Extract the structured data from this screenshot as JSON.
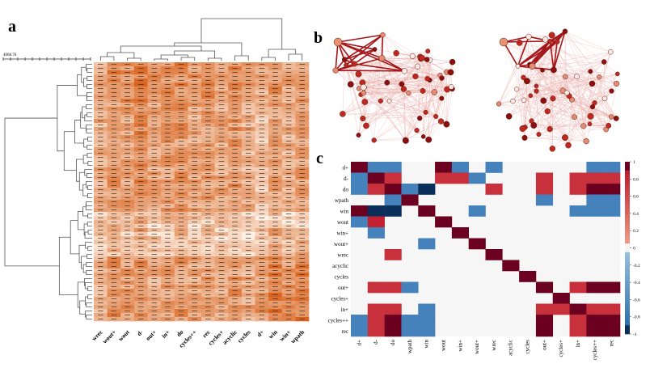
{
  "panels": {
    "a": "a",
    "b": "b",
    "c": "c"
  },
  "panel_a": {
    "scale_label": "4068.76",
    "column_labels": [
      "wrec",
      "wout+",
      "wout",
      "d-",
      "out+",
      "in+",
      "do",
      "cycles++",
      "rec",
      "cycles+",
      "acyclic",
      "cycles",
      "d+",
      "win",
      "win+",
      "wpath"
    ]
  },
  "panel_c": {
    "row_labels": [
      "d+",
      "d-",
      "do",
      "wpath",
      "win",
      "wout",
      "win+",
      "wout+",
      "wrec",
      "acyclic",
      "cycles",
      "out+",
      "cycles+",
      "in+",
      "cycles++",
      "rec"
    ],
    "col_labels": [
      "d+",
      "d-",
      "do",
      "wpath",
      "win",
      "wout",
      "win+",
      "wout+",
      "wrec",
      "acyclic",
      "cycles",
      "out+",
      "cycles+",
      "in+",
      "cycles++",
      "rec"
    ],
    "colorbar_ticks": [
      "1",
      "0.8",
      "0.6",
      "0.4",
      "0.2",
      "0",
      "-0.2",
      "-0.4",
      "-0.6",
      "-0.8",
      "-1"
    ]
  },
  "chart_data": [
    {
      "type": "heatmap",
      "title": "",
      "columns": [
        "wrec",
        "wout+",
        "wout",
        "d-",
        "out+",
        "in+",
        "do",
        "cycles++",
        "rec",
        "cycles+",
        "acyclic",
        "cycles",
        "d+",
        "win",
        "win+",
        "wpath"
      ],
      "row_count": 64,
      "color_low": "#fdf1e6",
      "color_high": "#d9621c"
    },
    {
      "type": "heatmap",
      "title": "",
      "rows": [
        "d+",
        "d-",
        "do",
        "wpath",
        "win",
        "wout",
        "win+",
        "wout+",
        "wrec",
        "acyclic",
        "cycles",
        "out+",
        "cycles+",
        "in+",
        "cycles++",
        "rec"
      ],
      "columns": [
        "d+",
        "d-",
        "do",
        "wpath",
        "win",
        "wout",
        "win+",
        "wout+",
        "wrec",
        "acyclic",
        "cycles",
        "out+",
        "cycles+",
        "in+",
        "cycles++",
        "rec"
      ],
      "value_range": [
        -1,
        1
      ],
      "values": [
        [
          1,
          -0.7,
          -0.7,
          0,
          0,
          0.95,
          -0.7,
          0,
          -0.7,
          0,
          0,
          0,
          0,
          0,
          -0.7,
          -0.7
        ],
        [
          -0.7,
          1,
          0.75,
          0,
          0,
          0.75,
          0.75,
          -0.7,
          0,
          0,
          0,
          0.75,
          0,
          0.75,
          0.75,
          0.75
        ],
        [
          -0.7,
          0.75,
          1,
          -0.7,
          -0.95,
          0,
          0,
          0,
          0.75,
          0,
          0,
          0.75,
          0,
          0.75,
          0.95,
          0.95
        ],
        [
          0,
          0,
          -0.7,
          1,
          0,
          0,
          0,
          0,
          0,
          0,
          0,
          -0.7,
          0,
          0,
          -0.7,
          -0.7
        ],
        [
          0.95,
          -0.95,
          -0.95,
          0,
          1,
          0,
          0,
          -0.7,
          0,
          0,
          0,
          0,
          0,
          -0.7,
          -0.7,
          -0.7
        ],
        [
          -0.7,
          0.85,
          0,
          0,
          0,
          1,
          0,
          0,
          0,
          0,
          0,
          0,
          0,
          0,
          0,
          0
        ],
        [
          0,
          -0.7,
          0,
          0,
          0,
          0,
          1,
          0,
          0,
          0,
          0,
          0,
          0,
          0,
          0,
          0
        ],
        [
          0,
          0,
          0,
          0,
          -0.7,
          0,
          0,
          1,
          0,
          0,
          0,
          0,
          0,
          0,
          0,
          0
        ],
        [
          0,
          0,
          0.75,
          0,
          0,
          0,
          0,
          0,
          1,
          0,
          0,
          0,
          0,
          0,
          0,
          0
        ],
        [
          0,
          0,
          0,
          0,
          0,
          0,
          0,
          0,
          0,
          1,
          0,
          0,
          0,
          0,
          0,
          0
        ],
        [
          0,
          0,
          0,
          0,
          0,
          0,
          0,
          0,
          0,
          0,
          1,
          0,
          0,
          0,
          0,
          0
        ],
        [
          0,
          0.75,
          0.75,
          -0.7,
          0,
          0,
          0,
          0,
          0,
          0,
          0,
          1,
          0,
          0.75,
          0.95,
          0.95
        ],
        [
          0,
          0,
          0,
          0,
          0,
          0,
          0,
          0,
          0,
          0,
          0,
          0,
          1,
          0,
          0,
          0
        ],
        [
          0,
          0.75,
          0.75,
          0,
          -0.7,
          0,
          0,
          0,
          0,
          0,
          0,
          0.75,
          0.75,
          1,
          0.75,
          0.75
        ],
        [
          -0.7,
          0.75,
          0.95,
          -0.7,
          -0.7,
          0,
          0,
          0,
          0,
          0,
          0,
          0.95,
          0,
          0.75,
          1,
          0.95
        ],
        [
          -0.7,
          0.75,
          0.95,
          -0.7,
          -0.7,
          0,
          0,
          0,
          0,
          0,
          0,
          0.95,
          0,
          0.75,
          0.95,
          1
        ]
      ]
    }
  ]
}
